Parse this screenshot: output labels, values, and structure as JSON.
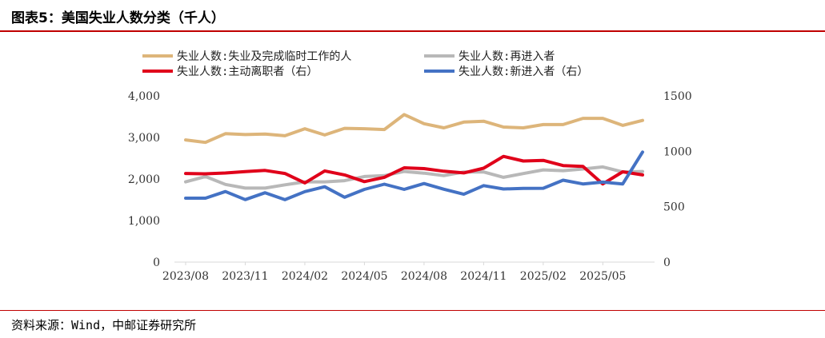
{
  "header": {
    "title": "图表5：美国失业人数分类（千人）"
  },
  "footer": {
    "source": "资料来源：Wind，中邮证券研究所"
  },
  "colors": {
    "rule": "#c00000"
  },
  "chart_data": {
    "type": "line",
    "x_labels": [
      "2023/08",
      "2023/11",
      "2024/02",
      "2024/05",
      "2024/08",
      "2024/11",
      "2025/02",
      "2025/05"
    ],
    "left_axis": {
      "min": 0,
      "max": 4000,
      "ticks": [
        "0",
        "1,000",
        "2,000",
        "3,000",
        "4,000"
      ],
      "tick_values": [
        0,
        1000,
        2000,
        3000,
        4000
      ]
    },
    "right_axis": {
      "min": 0,
      "max": 1500,
      "ticks": [
        "0",
        "500",
        "1000",
        "1500"
      ],
      "tick_values": [
        0,
        500,
        1000,
        1500
      ]
    },
    "grid": false,
    "legend_position": "top",
    "series": [
      {
        "name": "失业人数:失业及完成临时工作的人",
        "color": "#ddb57a",
        "axis": "left",
        "values": [
          2940,
          2880,
          3090,
          3070,
          3080,
          3040,
          3210,
          3060,
          3220,
          3210,
          3190,
          3550,
          3330,
          3230,
          3370,
          3390,
          3250,
          3230,
          3310,
          3310,
          3460,
          3460,
          3290,
          3410
        ]
      },
      {
        "name": "失业人数:再进入者",
        "color": "#b8b8b8",
        "axis": "left",
        "values": [
          1930,
          2060,
          1870,
          1780,
          1780,
          1860,
          1930,
          1930,
          1960,
          2060,
          2080,
          2180,
          2140,
          2080,
          2170,
          2170,
          2040,
          2130,
          2220,
          2200,
          2240,
          2290,
          2170,
          2180
        ]
      },
      {
        "name": "失业人数:主动离职者（右）",
        "color": "#e0001a",
        "axis": "right",
        "values": [
          800,
          797,
          804,
          817,
          827,
          800,
          715,
          823,
          787,
          726,
          765,
          851,
          844,
          820,
          805,
          847,
          954,
          912,
          918,
          871,
          864,
          705,
          815,
          787
        ]
      },
      {
        "name": "失业人数:新进入者（右）",
        "color": "#4472c4",
        "axis": "right",
        "values": [
          577,
          577,
          637,
          564,
          626,
          563,
          636,
          680,
          585,
          656,
          703,
          656,
          709,
          658,
          612,
          690,
          660,
          665,
          666,
          739,
          705,
          722,
          705,
          993
        ]
      }
    ]
  }
}
